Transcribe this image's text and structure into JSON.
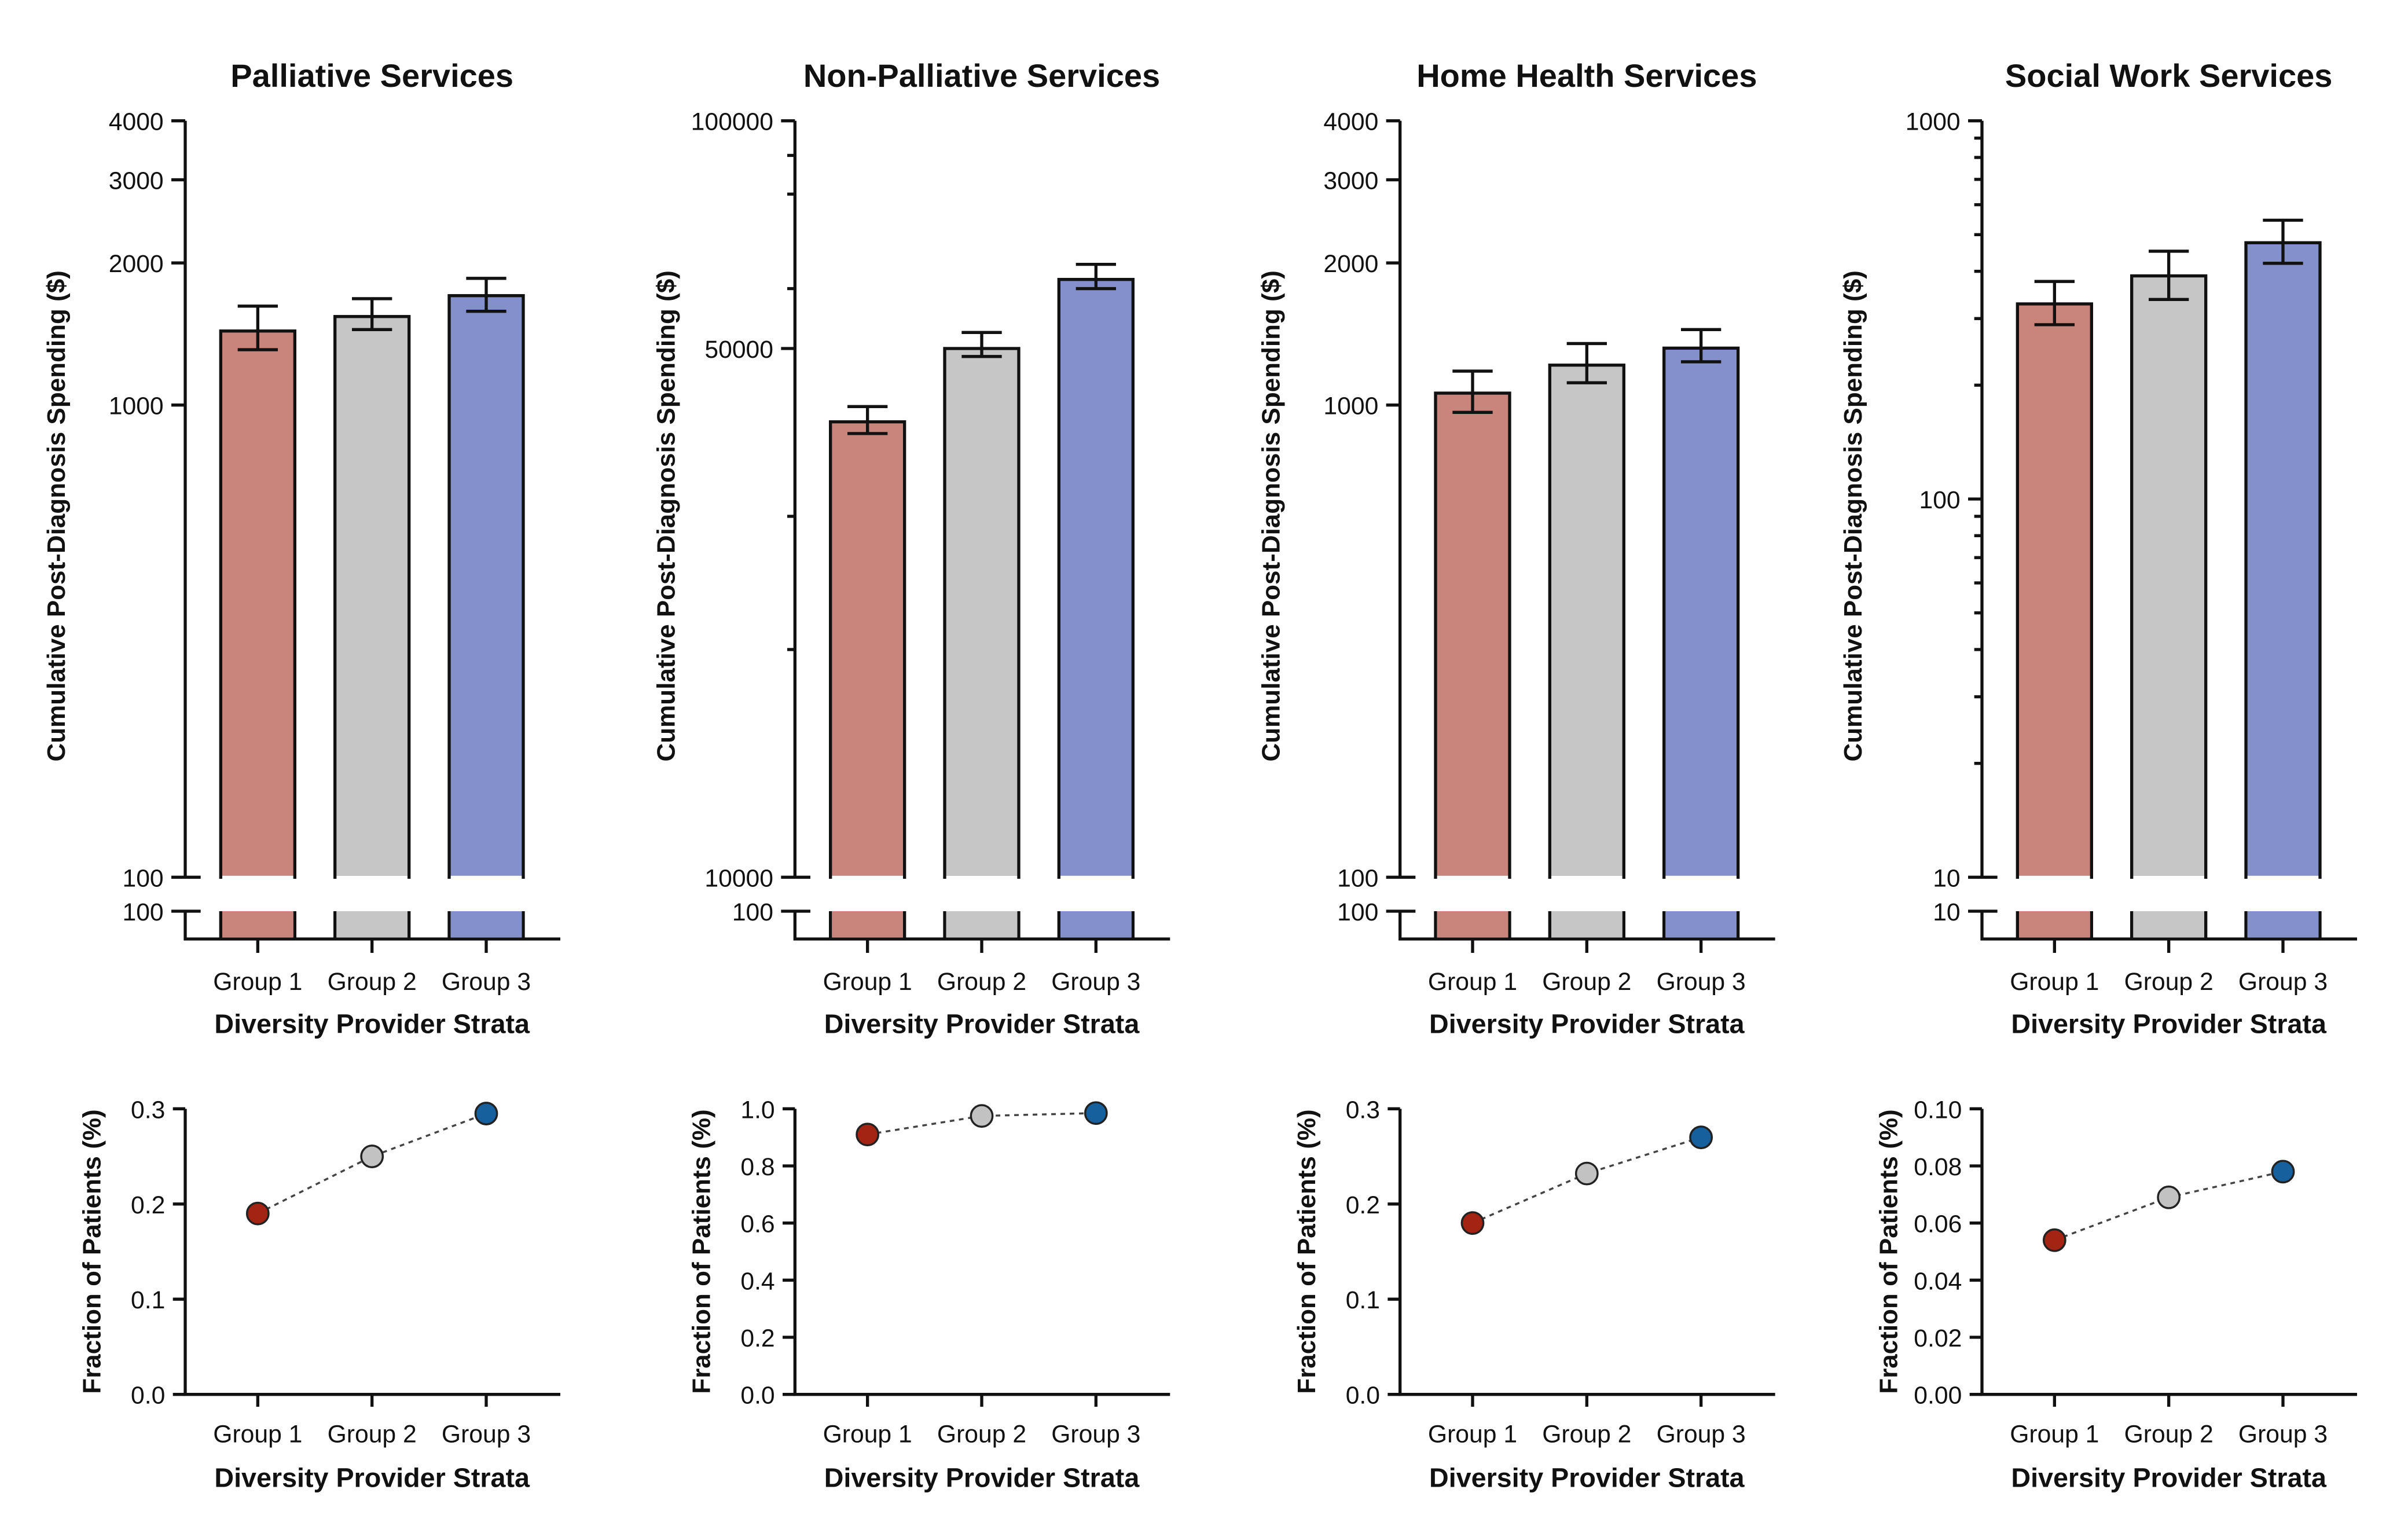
{
  "colors": {
    "group1_bar": "#c9847c",
    "group2_bar": "#c6c6c6",
    "group3_bar": "#8490cb",
    "group1_dot": "#a42414",
    "group2_dot": "#c2c2c2",
    "group3_dot": "#16609e"
  },
  "chart_data": [
    {
      "type": "bar",
      "panel": "top",
      "title": "Palliative Services",
      "xlabel": "Diversity Provider Strata",
      "ylabel": "Cumulative Post-Diagnosis Spending ($)",
      "yscale": "log",
      "ylim": [
        100,
        4000
      ],
      "break_label": "100",
      "categories": [
        "Group 1",
        "Group 2",
        "Group 3"
      ],
      "values": [
        1435,
        1540,
        1705
      ],
      "error_low": [
        1310,
        1445,
        1580
      ],
      "error_high": [
        1620,
        1680,
        1855
      ],
      "yticks": [
        100,
        1000,
        2000,
        3000,
        4000
      ],
      "ytick_labels": [
        "100",
        "1000",
        "2000",
        "3000",
        "4000"
      ],
      "minor_ticks": []
    },
    {
      "type": "bar",
      "panel": "top",
      "title": "Non-Palliative Services",
      "xlabel": "Diversity Provider Strata",
      "ylabel": "Cumulative Post-Diagnosis Spending ($)",
      "yscale": "log",
      "ylim": [
        10000,
        100000
      ],
      "break_label": "100",
      "categories": [
        "Group 1",
        "Group 2",
        "Group 3"
      ],
      "values": [
        40000,
        50000,
        61700
      ],
      "error_low": [
        38600,
        48800,
        60000
      ],
      "error_high": [
        41900,
        52500,
        64600
      ],
      "yticks": [
        10000,
        50000,
        100000
      ],
      "ytick_labels": [
        "10000",
        "50000",
        "100000"
      ],
      "minor_ticks": [
        20000,
        30000,
        60000,
        80000,
        90000
      ]
    },
    {
      "type": "bar",
      "panel": "top",
      "title": "Home Health Services",
      "xlabel": "Diversity Provider Strata",
      "ylabel": "Cumulative Post-Diagnosis Spending ($)",
      "yscale": "log",
      "ylim": [
        100,
        4000
      ],
      "break_label": "100",
      "categories": [
        "Group 1",
        "Group 2",
        "Group 3"
      ],
      "values": [
        1060,
        1215,
        1320
      ],
      "error_low": [
        965,
        1115,
        1235
      ],
      "error_high": [
        1180,
        1350,
        1445
      ],
      "yticks": [
        100,
        1000,
        2000,
        3000,
        4000
      ],
      "ytick_labels": [
        "100",
        "1000",
        "2000",
        "3000",
        "4000"
      ],
      "minor_ticks": []
    },
    {
      "type": "bar",
      "panel": "top",
      "title": "Social Work Services",
      "xlabel": "Diversity Provider Strata",
      "ylabel": "Cumulative Post-Diagnosis Spending ($)",
      "yscale": "log",
      "ylim": [
        10,
        1000
      ],
      "break_label": "10",
      "categories": [
        "Group 1",
        "Group 2",
        "Group 3"
      ],
      "values": [
        328,
        389,
        476
      ],
      "error_low": [
        289,
        337,
        420
      ],
      "error_high": [
        376,
        452,
        546
      ],
      "yticks": [
        10,
        100,
        1000
      ],
      "ytick_labels": [
        "10",
        "100",
        "1000"
      ],
      "minor_ticks": [
        20,
        30,
        40,
        50,
        60,
        70,
        80,
        90,
        200,
        300,
        400,
        500,
        600,
        700,
        800,
        900
      ]
    },
    {
      "type": "line",
      "panel": "bottom",
      "xlabel": "Diversity Provider Strata",
      "ylabel": "Fraction of Patients (%)",
      "ylim": [
        0,
        0.3
      ],
      "categories": [
        "Group 1",
        "Group 2",
        "Group 3"
      ],
      "values": [
        0.19,
        0.25,
        0.295
      ],
      "yticks": [
        0,
        0.1,
        0.2,
        0.3
      ],
      "ytick_labels": [
        "0.0",
        "0.1",
        "0.2",
        "0.3"
      ]
    },
    {
      "type": "line",
      "panel": "bottom",
      "xlabel": "Diversity Provider Strata",
      "ylabel": "Fraction of Patients (%)",
      "ylim": [
        0,
        1.0
      ],
      "categories": [
        "Group 1",
        "Group 2",
        "Group 3"
      ],
      "values": [
        0.91,
        0.975,
        0.985
      ],
      "yticks": [
        0,
        0.2,
        0.4,
        0.6,
        0.8,
        1.0
      ],
      "ytick_labels": [
        "0.0",
        "0.2",
        "0.4",
        "0.6",
        "0.8",
        "1.0"
      ]
    },
    {
      "type": "line",
      "panel": "bottom",
      "xlabel": "Diversity Provider Strata",
      "ylabel": "Fraction of Patients (%)",
      "ylim": [
        0,
        0.3
      ],
      "categories": [
        "Group 1",
        "Group 2",
        "Group 3"
      ],
      "values": [
        0.18,
        0.232,
        0.27
      ],
      "yticks": [
        0,
        0.1,
        0.2,
        0.3
      ],
      "ytick_labels": [
        "0.0",
        "0.1",
        "0.2",
        "0.3"
      ]
    },
    {
      "type": "line",
      "panel": "bottom",
      "xlabel": "Diversity Provider Strata",
      "ylabel": "Fraction of Patients (%)",
      "ylim": [
        0,
        0.1
      ],
      "categories": [
        "Group 1",
        "Group 2",
        "Group 3"
      ],
      "values": [
        0.054,
        0.069,
        0.078
      ],
      "yticks": [
        0,
        0.02,
        0.04,
        0.06,
        0.08,
        0.1
      ],
      "ytick_labels": [
        "0.00",
        "0.02",
        "0.04",
        "0.06",
        "0.08",
        "0.10"
      ]
    }
  ]
}
